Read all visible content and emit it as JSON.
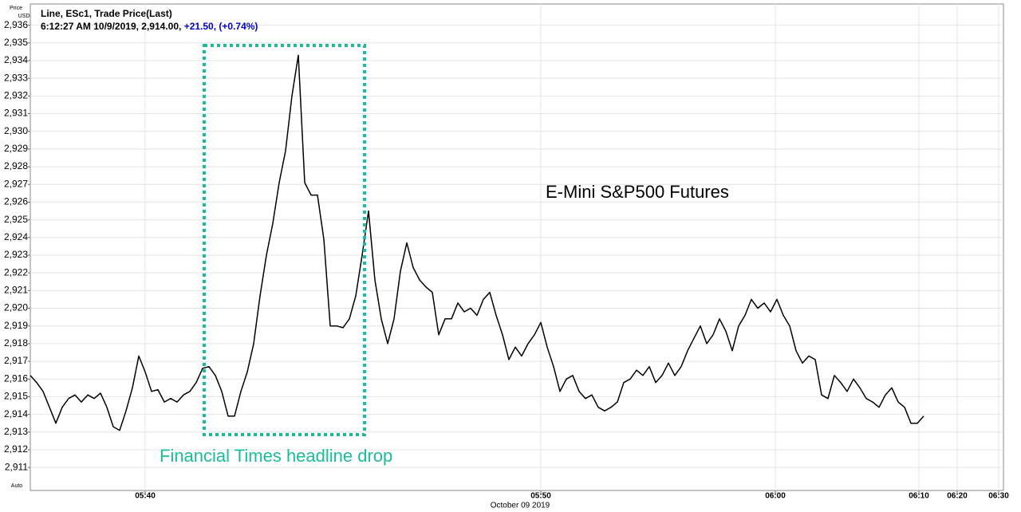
{
  "chart_data": {
    "type": "line",
    "header": "Line, ESc1, Trade Price(Last)",
    "status": "6:12:27 AM 10/9/2019, 2,914.00,",
    "change": "+21.50, (+0.74%)",
    "y_axis_label": "Price",
    "y_axis_unit": "USD",
    "scale_mode": "Auto",
    "x_axis_label": "October 09 2019",
    "title": "E-Mini S&P500 Futures",
    "annotation": "Financial Times headline drop",
    "color": "#000000",
    "annotation_color": "#1abc9c",
    "change_color": "#0000cc",
    "grid": true,
    "xlim": [
      0,
      152.5
    ],
    "xticks": [
      {
        "value": 18,
        "label": "05:40"
      },
      {
        "value": 80,
        "label": "05:50"
      },
      {
        "value": 116.75,
        "label": "06:00"
      },
      {
        "value": 139.25,
        "label": "06:10"
      },
      {
        "value": 145.25,
        "label": "06:20"
      },
      {
        "value": 151.75,
        "label": "06:30"
      }
    ],
    "ylim": [
      2909.7,
      2937.2
    ],
    "yticks": [
      {
        "value": 2911,
        "label": "2,911"
      },
      {
        "value": 2912,
        "label": "2,912"
      },
      {
        "value": 2913,
        "label": "2,913"
      },
      {
        "value": 2914,
        "label": "2,914"
      },
      {
        "value": 2915,
        "label": "2,915"
      },
      {
        "value": 2916,
        "label": "2,916"
      },
      {
        "value": 2917,
        "label": "2,917"
      },
      {
        "value": 2918,
        "label": "2,918"
      },
      {
        "value": 2919,
        "label": "2,919"
      },
      {
        "value": 2920,
        "label": "2,920"
      },
      {
        "value": 2921,
        "label": "2,921"
      },
      {
        "value": 2922,
        "label": "2,922"
      },
      {
        "value": 2923,
        "label": "2,923"
      },
      {
        "value": 2924,
        "label": "2,924"
      },
      {
        "value": 2925,
        "label": "2,925"
      },
      {
        "value": 2926,
        "label": "2,926"
      },
      {
        "value": 2927,
        "label": "2,927"
      },
      {
        "value": 2928,
        "label": "2,928"
      },
      {
        "value": 2929,
        "label": "2,929"
      },
      {
        "value": 2930,
        "label": "2,930"
      },
      {
        "value": 2931,
        "label": "2,931"
      },
      {
        "value": 2932,
        "label": "2,932"
      },
      {
        "value": 2933,
        "label": "2,933"
      },
      {
        "value": 2934,
        "label": "2,934"
      },
      {
        "value": 2935,
        "label": "2,935"
      },
      {
        "value": 2936,
        "label": "2,936"
      }
    ],
    "values": [
      2916.2,
      2915.8,
      2915.3,
      2914.4,
      2913.5,
      2914.4,
      2914.9,
      2915.1,
      2914.7,
      2915.1,
      2914.9,
      2915.2,
      2914.4,
      2913.3,
      2913.1,
      2914.2,
      2915.5,
      2917.3,
      2916.4,
      2915.3,
      2915.4,
      2914.7,
      2914.9,
      2914.7,
      2915.1,
      2915.3,
      2915.8,
      2916.6,
      2916.7,
      2916.2,
      2915.3,
      2913.9,
      2913.9,
      2915.3,
      2916.4,
      2918.0,
      2920.7,
      2923.0,
      2924.8,
      2927.1,
      2928.9,
      2932.0,
      2934.3,
      2927.1,
      2926.4,
      2926.4,
      2923.9,
      2919.0,
      2919.0,
      2918.9,
      2919.4,
      2920.7,
      2923.0,
      2925.5,
      2921.6,
      2919.4,
      2918.0,
      2919.4,
      2922.1,
      2923.7,
      2922.3,
      2921.6,
      2921.2,
      2920.9,
      2918.5,
      2919.4,
      2919.4,
      2920.3,
      2919.8,
      2920.0,
      2919.6,
      2920.5,
      2920.9,
      2919.6,
      2918.5,
      2917.1,
      2917.8,
      2917.3,
      2918.0,
      2918.5,
      2919.2,
      2917.8,
      2916.7,
      2915.3,
      2916.0,
      2916.2,
      2915.3,
      2914.9,
      2915.1,
      2914.4,
      2914.2,
      2914.4,
      2914.7,
      2915.8,
      2916.0,
      2916.5,
      2916.2,
      2916.7,
      2915.8,
      2916.2,
      2916.9,
      2916.2,
      2916.7,
      2917.6,
      2918.3,
      2919.0,
      2918.0,
      2918.5,
      2919.4,
      2918.7,
      2917.6,
      2919.0,
      2919.6,
      2920.5,
      2920.0,
      2920.3,
      2919.8,
      2920.5,
      2919.6,
      2919.0,
      2917.6,
      2916.9,
      2917.3,
      2917.1,
      2915.1,
      2914.9,
      2916.2,
      2915.8,
      2915.3,
      2916.0,
      2915.5,
      2914.9,
      2914.7,
      2914.4,
      2915.1,
      2915.5,
      2914.7,
      2914.4,
      2913.5,
      2913.5,
      2913.9
    ]
  }
}
